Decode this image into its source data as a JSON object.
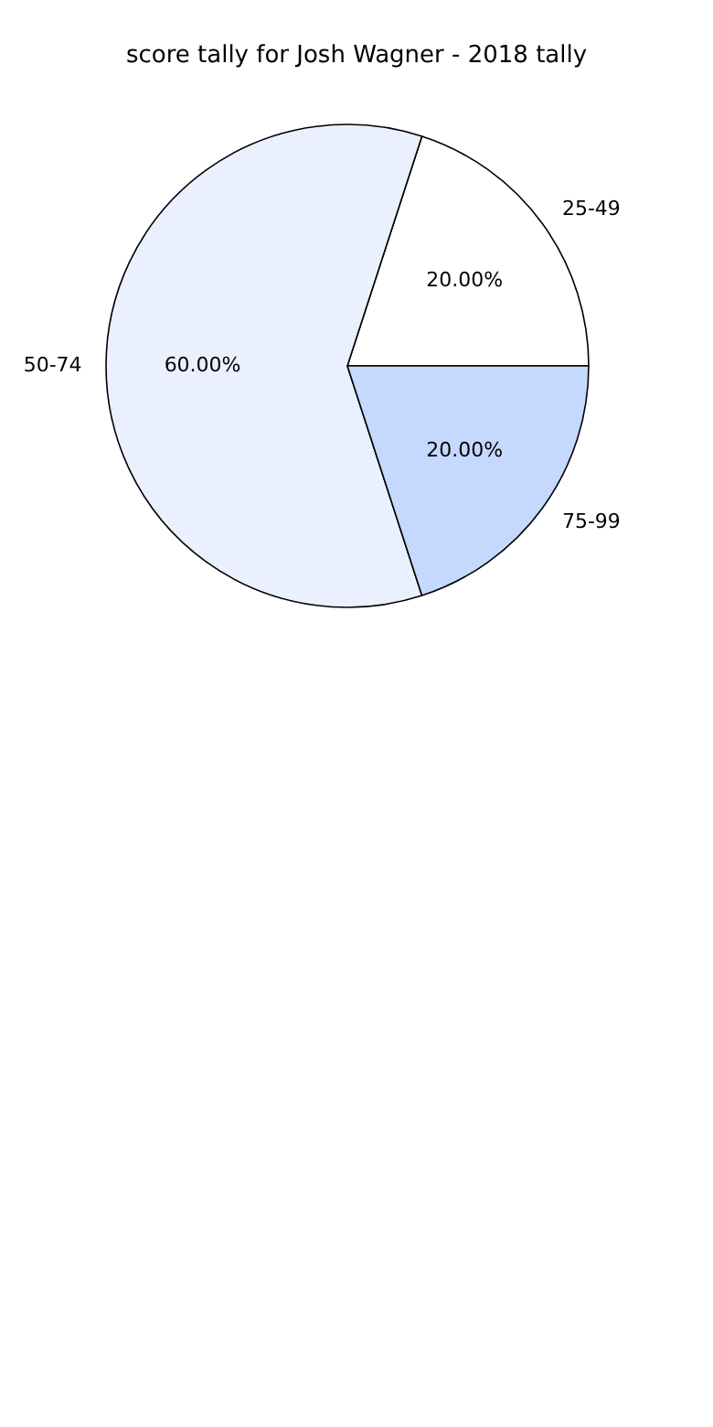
{
  "chart_data": {
    "type": "pie",
    "title": "score tally for Josh Wagner - 2018 tally",
    "categories": [
      "25-49",
      "50-74",
      "75-99"
    ],
    "values": [
      20,
      60,
      20
    ],
    "colors": [
      "#ffffff",
      "#eaf0fe",
      "#c5d8fe"
    ],
    "value_labels": [
      "20.00%",
      "60.00%",
      "20.00%"
    ]
  }
}
